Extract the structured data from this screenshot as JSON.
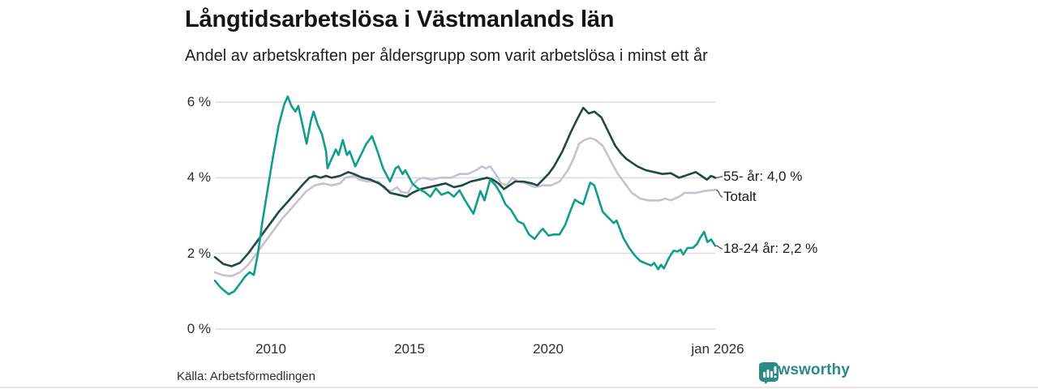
{
  "header": {
    "title": "Långtidsarbetslösa i Västmanlands län",
    "subtitle": "Andel av arbetskraften per åldersgrupp som varit arbetslösa i minst ett år"
  },
  "footer": {
    "source": "Källa: Arbetsförmedlingen",
    "brand": "Newsworthy",
    "brand_color": "#2b8b84"
  },
  "chart_data": {
    "type": "line",
    "title": "Långtidsarbetslösa i Västmanlands län",
    "subtitle": "Andel av arbetskraften per åldersgrupp som varit arbetslösa i minst ett år",
    "unit": "%",
    "grid": "horizontal-only",
    "grid_color": "#dcdcdf",
    "x_axis": {
      "range": [
        2008,
        2026
      ],
      "tick_labels": [
        "2010",
        "2015",
        "2020",
        "jan 2026"
      ],
      "tick_years": [
        2010,
        2015,
        2020,
        2026
      ]
    },
    "y_axis": {
      "range": [
        0,
        6
      ],
      "tick_labels": [
        "6 %",
        "4 %",
        "2 %",
        "0 %"
      ],
      "tick_values": [
        6,
        4,
        2,
        0
      ]
    },
    "legend_position": "right-end-labels",
    "series": [
      {
        "name": "Totalt",
        "end_label": "Totalt",
        "end_value": 3.7,
        "color": "#c5c3d0",
        "points": [
          [
            2008.0,
            1.5
          ],
          [
            2008.3,
            1.42
          ],
          [
            2008.6,
            1.4
          ],
          [
            2008.9,
            1.5
          ],
          [
            2009.2,
            1.7
          ],
          [
            2009.5,
            2.0
          ],
          [
            2009.8,
            2.3
          ],
          [
            2010.1,
            2.6
          ],
          [
            2010.4,
            2.9
          ],
          [
            2010.7,
            3.15
          ],
          [
            2011.0,
            3.4
          ],
          [
            2011.3,
            3.65
          ],
          [
            2011.6,
            3.8
          ],
          [
            2011.9,
            3.85
          ],
          [
            2012.2,
            3.8
          ],
          [
            2012.5,
            3.85
          ],
          [
            2012.7,
            4.0
          ],
          [
            2013.0,
            4.05
          ],
          [
            2013.2,
            3.95
          ],
          [
            2013.5,
            3.9
          ],
          [
            2013.9,
            3.9
          ],
          [
            2014.1,
            3.7
          ],
          [
            2014.35,
            3.65
          ],
          [
            2014.55,
            3.75
          ],
          [
            2014.7,
            3.62
          ],
          [
            2014.95,
            3.6
          ],
          [
            2015.1,
            3.8
          ],
          [
            2015.3,
            3.95
          ],
          [
            2015.5,
            4.0
          ],
          [
            2015.8,
            3.95
          ],
          [
            2016.1,
            4.0
          ],
          [
            2016.5,
            4.0
          ],
          [
            2016.8,
            4.1
          ],
          [
            2017.1,
            4.1
          ],
          [
            2017.4,
            4.2
          ],
          [
            2017.6,
            4.3
          ],
          [
            2017.75,
            4.25
          ],
          [
            2017.9,
            4.3
          ],
          [
            2018.1,
            4.1
          ],
          [
            2018.3,
            3.85
          ],
          [
            2018.5,
            3.8
          ],
          [
            2018.7,
            4.0
          ],
          [
            2018.9,
            3.9
          ],
          [
            2019.2,
            3.85
          ],
          [
            2019.5,
            3.75
          ],
          [
            2019.8,
            3.8
          ],
          [
            2020.1,
            3.8
          ],
          [
            2020.4,
            3.9
          ],
          [
            2020.7,
            4.2
          ],
          [
            2020.9,
            4.5
          ],
          [
            2021.1,
            4.9
          ],
          [
            2021.3,
            5.0
          ],
          [
            2021.5,
            5.05
          ],
          [
            2021.7,
            5.0
          ],
          [
            2021.95,
            4.85
          ],
          [
            2022.2,
            4.5
          ],
          [
            2022.5,
            4.1
          ],
          [
            2022.8,
            3.8
          ],
          [
            2023.0,
            3.6
          ],
          [
            2023.3,
            3.45
          ],
          [
            2023.6,
            3.4
          ],
          [
            2024.0,
            3.4
          ],
          [
            2024.2,
            3.45
          ],
          [
            2024.4,
            3.4
          ],
          [
            2024.7,
            3.5
          ],
          [
            2024.9,
            3.6
          ],
          [
            2025.3,
            3.6
          ],
          [
            2025.6,
            3.65
          ],
          [
            2026.0,
            3.68
          ]
        ]
      },
      {
        "name": "55- år",
        "end_label": "55- år: 4,0 %",
        "end_value": 4.0,
        "color": "#1e4a42",
        "points": [
          [
            2008.0,
            1.9
          ],
          [
            2008.3,
            1.72
          ],
          [
            2008.6,
            1.66
          ],
          [
            2008.9,
            1.75
          ],
          [
            2009.2,
            2.0
          ],
          [
            2009.5,
            2.3
          ],
          [
            2009.75,
            2.55
          ],
          [
            2010.0,
            2.8
          ],
          [
            2010.3,
            3.1
          ],
          [
            2010.6,
            3.35
          ],
          [
            2010.9,
            3.6
          ],
          [
            2011.2,
            3.85
          ],
          [
            2011.4,
            4.0
          ],
          [
            2011.6,
            4.05
          ],
          [
            2011.8,
            4.0
          ],
          [
            2012.0,
            4.05
          ],
          [
            2012.2,
            4.0
          ],
          [
            2012.5,
            4.05
          ],
          [
            2012.8,
            4.15
          ],
          [
            2013.0,
            4.1
          ],
          [
            2013.3,
            4.0
          ],
          [
            2013.6,
            3.95
          ],
          [
            2013.9,
            3.85
          ],
          [
            2014.1,
            3.75
          ],
          [
            2014.3,
            3.6
          ],
          [
            2014.6,
            3.55
          ],
          [
            2014.9,
            3.5
          ],
          [
            2015.1,
            3.6
          ],
          [
            2015.4,
            3.7
          ],
          [
            2015.7,
            3.75
          ],
          [
            2016.0,
            3.8
          ],
          [
            2016.3,
            3.85
          ],
          [
            2016.6,
            3.75
          ],
          [
            2016.9,
            3.8
          ],
          [
            2017.2,
            3.9
          ],
          [
            2017.5,
            3.95
          ],
          [
            2017.8,
            4.0
          ],
          [
            2018.0,
            3.95
          ],
          [
            2018.2,
            3.85
          ],
          [
            2018.4,
            3.7
          ],
          [
            2018.6,
            3.8
          ],
          [
            2018.8,
            3.9
          ],
          [
            2019.1,
            3.9
          ],
          [
            2019.4,
            3.85
          ],
          [
            2019.6,
            3.8
          ],
          [
            2019.8,
            3.95
          ],
          [
            2020.0,
            4.1
          ],
          [
            2020.2,
            4.3
          ],
          [
            2020.5,
            4.7
          ],
          [
            2020.8,
            5.2
          ],
          [
            2021.0,
            5.5
          ],
          [
            2021.25,
            5.85
          ],
          [
            2021.45,
            5.7
          ],
          [
            2021.65,
            5.75
          ],
          [
            2021.9,
            5.6
          ],
          [
            2022.1,
            5.3
          ],
          [
            2022.4,
            4.85
          ],
          [
            2022.6,
            4.65
          ],
          [
            2022.8,
            4.5
          ],
          [
            2023.0,
            4.4
          ],
          [
            2023.2,
            4.3
          ],
          [
            2023.5,
            4.2
          ],
          [
            2023.8,
            4.15
          ],
          [
            2024.1,
            4.1
          ],
          [
            2024.4,
            4.12
          ],
          [
            2024.7,
            4.0
          ],
          [
            2024.9,
            4.05
          ],
          [
            2025.1,
            4.1
          ],
          [
            2025.3,
            4.15
          ],
          [
            2025.5,
            4.05
          ],
          [
            2025.7,
            3.95
          ],
          [
            2025.85,
            4.05
          ],
          [
            2026.0,
            4.0
          ]
        ]
      },
      {
        "name": "18-24 år",
        "end_label": "18-24 år: 2,2 %",
        "end_value": 2.2,
        "color": "#119d8e",
        "points": [
          [
            2008.0,
            1.28
          ],
          [
            2008.2,
            1.1
          ],
          [
            2008.5,
            0.92
          ],
          [
            2008.7,
            1.0
          ],
          [
            2008.9,
            1.2
          ],
          [
            2009.1,
            1.4
          ],
          [
            2009.25,
            1.5
          ],
          [
            2009.4,
            1.43
          ],
          [
            2009.55,
            2.0
          ],
          [
            2009.7,
            2.8
          ],
          [
            2009.9,
            3.7
          ],
          [
            2010.1,
            4.6
          ],
          [
            2010.3,
            5.4
          ],
          [
            2010.5,
            5.95
          ],
          [
            2010.62,
            6.15
          ],
          [
            2010.75,
            5.9
          ],
          [
            2010.9,
            5.75
          ],
          [
            2011.0,
            5.9
          ],
          [
            2011.15,
            5.4
          ],
          [
            2011.3,
            4.9
          ],
          [
            2011.45,
            5.5
          ],
          [
            2011.55,
            5.75
          ],
          [
            2011.7,
            5.4
          ],
          [
            2011.85,
            5.15
          ],
          [
            2012.0,
            4.7
          ],
          [
            2012.05,
            4.25
          ],
          [
            2012.2,
            4.5
          ],
          [
            2012.35,
            4.75
          ],
          [
            2012.45,
            4.6
          ],
          [
            2012.6,
            5.0
          ],
          [
            2012.75,
            4.6
          ],
          [
            2012.85,
            4.7
          ],
          [
            2013.05,
            4.3
          ],
          [
            2013.25,
            4.6
          ],
          [
            2013.45,
            4.9
          ],
          [
            2013.65,
            5.1
          ],
          [
            2013.85,
            4.7
          ],
          [
            2014.05,
            4.25
          ],
          [
            2014.3,
            3.9
          ],
          [
            2014.5,
            4.25
          ],
          [
            2014.6,
            4.3
          ],
          [
            2014.75,
            4.1
          ],
          [
            2014.85,
            4.2
          ],
          [
            2015.1,
            3.85
          ],
          [
            2015.3,
            3.72
          ],
          [
            2015.55,
            3.62
          ],
          [
            2015.75,
            3.5
          ],
          [
            2015.95,
            3.72
          ],
          [
            2016.15,
            3.55
          ],
          [
            2016.4,
            3.62
          ],
          [
            2016.6,
            3.5
          ],
          [
            2016.8,
            3.67
          ],
          [
            2017.0,
            3.4
          ],
          [
            2017.3,
            3.05
          ],
          [
            2017.55,
            3.65
          ],
          [
            2017.7,
            3.4
          ],
          [
            2017.9,
            3.95
          ],
          [
            2018.1,
            3.8
          ],
          [
            2018.3,
            3.55
          ],
          [
            2018.45,
            3.3
          ],
          [
            2018.65,
            3.15
          ],
          [
            2018.9,
            2.85
          ],
          [
            2019.1,
            2.78
          ],
          [
            2019.3,
            2.5
          ],
          [
            2019.5,
            2.38
          ],
          [
            2019.7,
            2.58
          ],
          [
            2019.8,
            2.65
          ],
          [
            2020.0,
            2.47
          ],
          [
            2020.2,
            2.5
          ],
          [
            2020.4,
            2.5
          ],
          [
            2020.6,
            2.75
          ],
          [
            2020.8,
            3.15
          ],
          [
            2020.95,
            3.42
          ],
          [
            2021.1,
            3.35
          ],
          [
            2021.25,
            3.3
          ],
          [
            2021.5,
            3.87
          ],
          [
            2021.65,
            3.8
          ],
          [
            2021.95,
            3.1
          ],
          [
            2022.15,
            2.95
          ],
          [
            2022.35,
            2.8
          ],
          [
            2022.45,
            2.87
          ],
          [
            2022.7,
            2.4
          ],
          [
            2022.9,
            2.15
          ],
          [
            2023.1,
            1.95
          ],
          [
            2023.3,
            1.8
          ],
          [
            2023.55,
            1.72
          ],
          [
            2023.7,
            1.68
          ],
          [
            2023.8,
            1.75
          ],
          [
            2023.95,
            1.58
          ],
          [
            2024.05,
            1.7
          ],
          [
            2024.15,
            1.6
          ],
          [
            2024.35,
            1.9
          ],
          [
            2024.5,
            2.07
          ],
          [
            2024.65,
            2.05
          ],
          [
            2024.75,
            2.1
          ],
          [
            2024.85,
            1.97
          ],
          [
            2025.0,
            2.14
          ],
          [
            2025.2,
            2.15
          ],
          [
            2025.35,
            2.25
          ],
          [
            2025.45,
            2.4
          ],
          [
            2025.6,
            2.57
          ],
          [
            2025.72,
            2.3
          ],
          [
            2025.85,
            2.37
          ],
          [
            2026.0,
            2.2
          ]
        ]
      }
    ]
  }
}
